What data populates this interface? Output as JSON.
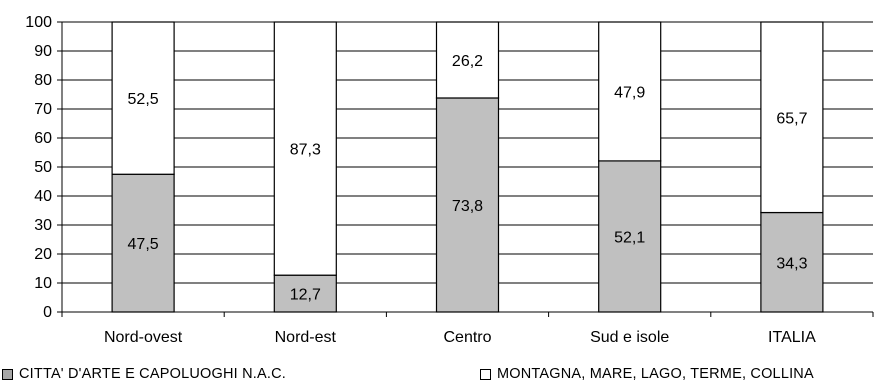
{
  "chart_data": {
    "type": "bar",
    "stacked": true,
    "categories": [
      "Nord-ovest",
      "Nord-est",
      "Centro",
      "Sud e isole",
      "ITALIA"
    ],
    "series": [
      {
        "name": "CITTA' D'ARTE E CAPOLUOGHI N.A.C.",
        "values": [
          47.5,
          12.7,
          73.8,
          52.1,
          34.3
        ],
        "labels": [
          "47,5",
          "12,7",
          "73,8",
          "52,1",
          "34,3"
        ],
        "color": "#c0c0c0"
      },
      {
        "name": "MONTAGNA, MARE, LAGO, TERME, COLLINA",
        "values": [
          52.5,
          87.3,
          26.2,
          47.9,
          65.7
        ],
        "labels": [
          "52,5",
          "87,3",
          "26,2",
          "47,9",
          "65,7"
        ],
        "color": "#ffffff"
      }
    ],
    "title": "",
    "xlabel": "",
    "ylabel": "",
    "ylim": [
      0,
      100
    ],
    "yticks": [
      "0",
      "10",
      "20",
      "30",
      "40",
      "50",
      "60",
      "70",
      "80",
      "90",
      "100"
    ],
    "grid": true,
    "legend_position": "bottom"
  }
}
